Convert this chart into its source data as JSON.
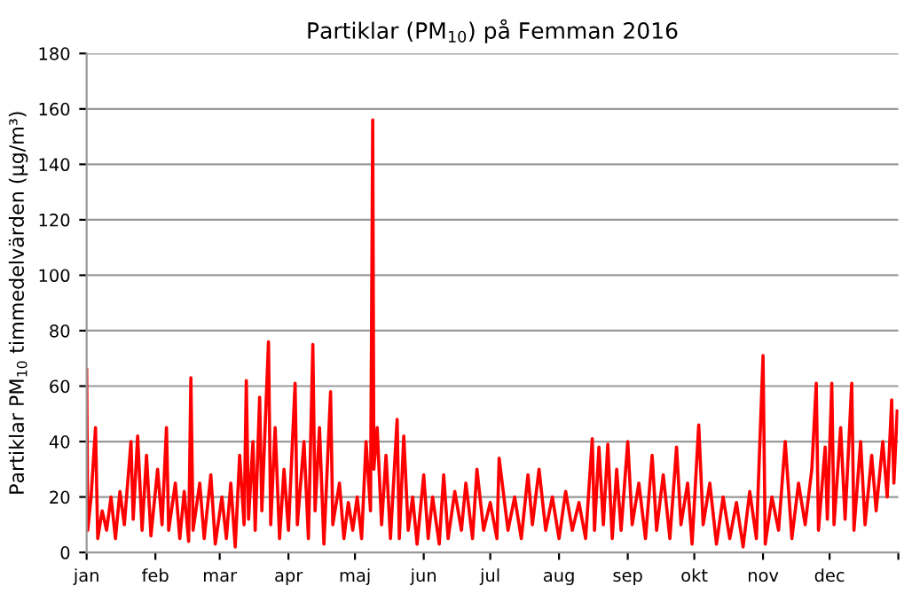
{
  "chart_data": {
    "type": "line",
    "title": "Partiklar (PM$_{10}$) på Femman 2016",
    "ylabel": "Partiklar PM$_{10}$ timmedelvärden (µg/m³)",
    "series": [
      {
        "color": "#ff0000",
        "x": [
          "2016-01-01T00:00",
          "2016-01-01T12:00",
          "2016-01-03",
          "2016-01-05",
          "2016-01-06",
          "2016-01-08",
          "2016-01-10",
          "2016-01-12",
          "2016-01-14",
          "2016-01-16",
          "2016-01-18",
          "2016-01-21",
          "2016-01-22",
          "2016-01-24",
          "2016-01-26",
          "2016-01-28",
          "2016-01-30",
          "2016-02-02",
          "2016-02-04",
          "2016-02-06",
          "2016-02-07",
          "2016-02-10",
          "2016-02-12",
          "2016-02-14",
          "2016-02-16",
          "2016-02-17",
          "2016-02-18",
          "2016-02-21",
          "2016-02-23",
          "2016-02-26",
          "2016-02-28",
          "2016-03-02",
          "2016-03-04",
          "2016-03-06",
          "2016-03-08",
          "2016-03-10",
          "2016-03-12",
          "2016-03-13",
          "2016-03-14",
          "2016-03-16",
          "2016-03-17",
          "2016-03-19",
          "2016-03-20",
          "2016-03-23",
          "2016-03-24",
          "2016-03-26",
          "2016-03-28",
          "2016-03-30",
          "2016-04-01",
          "2016-04-04",
          "2016-04-05",
          "2016-04-08",
          "2016-04-10",
          "2016-04-12",
          "2016-04-13",
          "2016-04-15",
          "2016-04-17",
          "2016-04-20",
          "2016-04-21",
          "2016-04-24",
          "2016-04-26",
          "2016-04-28",
          "2016-04-30",
          "2016-05-02",
          "2016-05-04",
          "2016-05-06",
          "2016-05-08",
          "2016-05-09T00:00",
          "2016-05-09T12:00",
          "2016-05-11",
          "2016-05-13",
          "2016-05-15",
          "2016-05-17",
          "2016-05-20",
          "2016-05-21",
          "2016-05-23",
          "2016-05-25",
          "2016-05-27",
          "2016-05-29",
          "2016-06-01",
          "2016-06-03",
          "2016-06-05",
          "2016-06-08",
          "2016-06-10",
          "2016-06-12",
          "2016-06-15",
          "2016-06-18",
          "2016-06-20",
          "2016-06-23",
          "2016-06-25",
          "2016-06-28",
          "2016-07-01",
          "2016-07-04",
          "2016-07-05",
          "2016-07-09",
          "2016-07-12",
          "2016-07-15",
          "2016-07-18",
          "2016-07-20",
          "2016-07-23",
          "2016-07-26",
          "2016-07-29",
          "2016-08-01",
          "2016-08-04",
          "2016-08-07",
          "2016-08-10",
          "2016-08-13",
          "2016-08-16",
          "2016-08-17",
          "2016-08-19",
          "2016-08-21",
          "2016-08-23",
          "2016-08-25",
          "2016-08-27",
          "2016-08-29",
          "2016-09-01",
          "2016-09-03",
          "2016-09-06",
          "2016-09-09",
          "2016-09-12",
          "2016-09-14",
          "2016-09-17",
          "2016-09-20",
          "2016-09-23",
          "2016-09-25",
          "2016-09-28",
          "2016-09-30",
          "2016-10-03",
          "2016-10-05",
          "2016-10-08",
          "2016-10-11",
          "2016-10-14",
          "2016-10-17",
          "2016-10-20",
          "2016-10-23",
          "2016-10-26",
          "2016-10-29",
          "2016-11-01",
          "2016-11-02",
          "2016-11-05",
          "2016-11-08",
          "2016-11-11",
          "2016-11-14",
          "2016-11-17",
          "2016-11-20",
          "2016-11-23",
          "2016-11-25",
          "2016-11-26",
          "2016-11-29",
          "2016-11-30",
          "2016-12-02",
          "2016-12-03",
          "2016-12-06",
          "2016-12-08",
          "2016-12-11",
          "2016-12-12",
          "2016-12-15",
          "2016-12-17",
          "2016-12-20",
          "2016-12-22",
          "2016-12-25",
          "2016-12-27",
          "2016-12-29",
          "2016-12-30",
          "2016-12-31T12:00"
        ],
        "values": [
          66,
          8,
          20,
          45,
          5,
          15,
          8,
          20,
          5,
          22,
          10,
          40,
          12,
          42,
          8,
          35,
          6,
          30,
          10,
          45,
          8,
          25,
          5,
          22,
          4,
          63,
          8,
          25,
          5,
          28,
          3,
          20,
          5,
          25,
          2,
          35,
          10,
          62,
          12,
          40,
          8,
          56,
          15,
          76,
          10,
          45,
          5,
          30,
          8,
          61,
          10,
          40,
          5,
          75,
          15,
          45,
          3,
          58,
          10,
          25,
          5,
          18,
          8,
          20,
          5,
          40,
          15,
          156,
          30,
          45,
          10,
          35,
          5,
          48,
          5,
          42,
          8,
          20,
          3,
          28,
          5,
          20,
          3,
          28,
          5,
          22,
          8,
          25,
          5,
          30,
          8,
          18,
          5,
          34,
          8,
          20,
          5,
          28,
          10,
          30,
          8,
          20,
          5,
          22,
          8,
          18,
          5,
          41,
          8,
          38,
          10,
          39,
          5,
          30,
          8,
          40,
          10,
          25,
          5,
          35,
          8,
          28,
          5,
          38,
          10,
          25,
          3,
          46,
          10,
          25,
          3,
          20,
          5,
          18,
          2,
          22,
          5,
          71,
          3,
          20,
          8,
          40,
          5,
          25,
          10,
          30,
          61,
          8,
          38,
          12,
          61,
          10,
          45,
          12,
          61,
          8,
          40,
          10,
          35,
          15,
          40,
          20,
          55,
          25,
          51
        ]
      }
    ],
    "xlim": [
      "2016-01-01",
      "2017-01-01"
    ],
    "xticks": [
      {
        "value": "2016-01-01",
        "label": "jan"
      },
      {
        "value": "2016-02-01",
        "label": "feb"
      },
      {
        "value": "2016-03-01",
        "label": "mar"
      },
      {
        "value": "2016-04-01",
        "label": "apr"
      },
      {
        "value": "2016-05-01",
        "label": "maj"
      },
      {
        "value": "2016-06-01",
        "label": "jun"
      },
      {
        "value": "2016-07-01",
        "label": "jul"
      },
      {
        "value": "2016-08-01",
        "label": "aug"
      },
      {
        "value": "2016-09-01",
        "label": "sep"
      },
      {
        "value": "2016-10-01",
        "label": "okt"
      },
      {
        "value": "2016-11-01",
        "label": "nov"
      },
      {
        "value": "2016-12-01",
        "label": "dec"
      },
      {
        "value": "2017-01-01",
        "label": null
      }
    ],
    "ylim": [
      0,
      180
    ],
    "yticks": [
      0,
      20,
      40,
      60,
      80,
      100,
      120,
      140,
      160,
      180
    ],
    "grid": "y",
    "legend": false,
    "marker": "none",
    "line_style": "solid"
  }
}
